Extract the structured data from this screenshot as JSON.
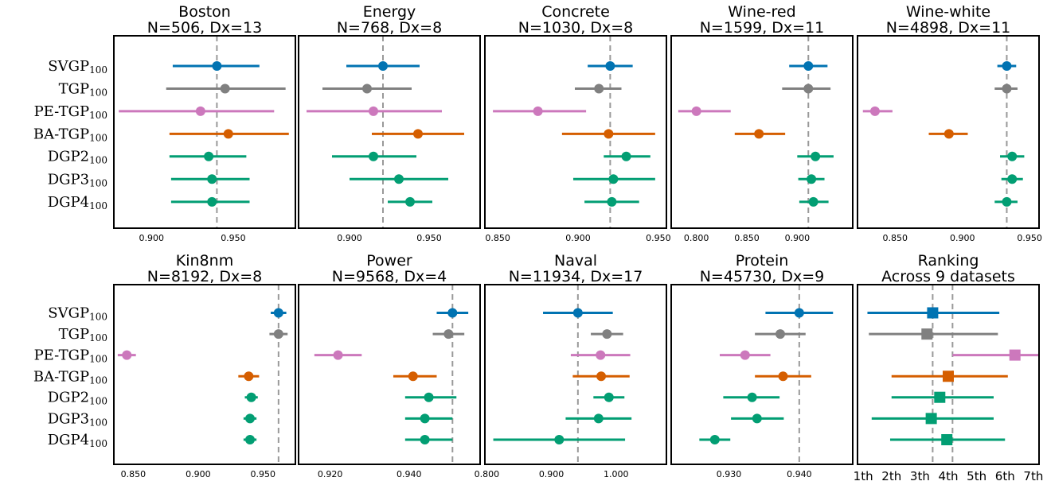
{
  "figure": {
    "methods": [
      {
        "name": "SVGP",
        "sub": "100",
        "color": "#0173b2"
      },
      {
        "name": "TGP",
        "sub": "100",
        "color": "#808080"
      },
      {
        "name": "PE-TGP",
        "sub": "100",
        "color": "#cc78bc"
      },
      {
        "name": "BA-TGP",
        "sub": "100",
        "color": "#d55e00"
      },
      {
        "name": "DGP2",
        "sub": "100",
        "color": "#029e73"
      },
      {
        "name": "DGP3",
        "sub": "100",
        "color": "#029e73"
      },
      {
        "name": "DGP4",
        "sub": "100",
        "color": "#029e73"
      }
    ]
  },
  "chart_data": [
    {
      "type": "errorbar",
      "title": "Boston",
      "subtitle": "N=506, Dx=13",
      "xlim": [
        0.877,
        0.988
      ],
      "xticks": [
        0.9,
        0.95
      ],
      "xticklabels": [
        "0.900",
        "0.950"
      ],
      "reference": 0.94,
      "marker": "circle",
      "mean": [
        0.94,
        0.945,
        0.93,
        0.947,
        0.935,
        0.937,
        0.937
      ],
      "low": [
        0.913,
        0.909,
        0.88,
        0.911,
        0.911,
        0.912,
        0.912
      ],
      "high": [
        0.966,
        0.982,
        0.975,
        0.984,
        0.958,
        0.96,
        0.96
      ]
    },
    {
      "type": "errorbar",
      "title": "Energy",
      "subtitle": "N=768, Dx=8",
      "xlim": [
        0.868,
        0.982
      ],
      "xticks": [
        0.9,
        0.95
      ],
      "xticklabels": [
        "0.900",
        "0.950"
      ],
      "reference": 0.921,
      "marker": "circle",
      "mean": [
        0.921,
        0.911,
        0.915,
        0.943,
        0.915,
        0.931,
        0.938
      ],
      "low": [
        0.898,
        0.883,
        0.873,
        0.914,
        0.889,
        0.9,
        0.924
      ],
      "high": [
        0.944,
        0.939,
        0.958,
        0.972,
        0.942,
        0.962,
        0.952
      ]
    },
    {
      "type": "errorbar",
      "title": "Concrete",
      "subtitle": "N=1030, Dx=8",
      "xlim": [
        0.842,
        0.955
      ],
      "xticks": [
        0.85,
        0.9,
        0.95
      ],
      "xticklabels": [
        "0.850",
        "0.900",
        "0.950"
      ],
      "reference": 0.92,
      "marker": "circle",
      "mean": [
        0.92,
        0.913,
        0.875,
        0.919,
        0.93,
        0.922,
        0.921
      ],
      "low": [
        0.906,
        0.898,
        0.847,
        0.89,
        0.916,
        0.897,
        0.904
      ],
      "high": [
        0.934,
        0.927,
        0.905,
        0.948,
        0.945,
        0.948,
        0.938
      ]
    },
    {
      "type": "errorbar",
      "title": "Wine-red",
      "subtitle": "N=1599, Dx=11",
      "xlim": [
        0.775,
        0.955
      ],
      "xticks": [
        0.8,
        0.85,
        0.9
      ],
      "xticklabels": [
        "0.800",
        "0.850",
        "0.900"
      ],
      "reference": 0.911,
      "marker": "circle",
      "mean": [
        0.911,
        0.911,
        0.8,
        0.862,
        0.918,
        0.914,
        0.916
      ],
      "low": [
        0.892,
        0.885,
        0.782,
        0.838,
        0.9,
        0.901,
        0.902
      ],
      "high": [
        0.93,
        0.933,
        0.834,
        0.888,
        0.936,
        0.927,
        0.931
      ]
    },
    {
      "type": "errorbar",
      "title": "Wine-white",
      "subtitle": "N=4898, Dx=11",
      "xlim": [
        0.822,
        0.957
      ],
      "xticks": [
        0.85,
        0.9,
        0.95
      ],
      "xticklabels": [
        "0.850",
        "0.900",
        "0.950"
      ],
      "reference": 0.933,
      "marker": "circle",
      "mean": [
        0.933,
        0.933,
        0.835,
        0.89,
        0.937,
        0.937,
        0.933
      ],
      "low": [
        0.926,
        0.924,
        0.826,
        0.875,
        0.928,
        0.929,
        0.924
      ],
      "high": [
        0.94,
        0.941,
        0.848,
        0.904,
        0.946,
        0.945,
        0.941
      ]
    },
    {
      "type": "errorbar",
      "title": "Kin8nm",
      "subtitle": "N=8192, Dx=8",
      "xlim": [
        0.835,
        0.975
      ],
      "xticks": [
        0.85,
        0.9,
        0.95
      ],
      "xticklabels": [
        "0.850",
        "0.900",
        "0.950"
      ],
      "reference": 0.962,
      "marker": "circle",
      "mean": [
        0.962,
        0.962,
        0.845,
        0.939,
        0.941,
        0.94,
        0.94
      ],
      "low": [
        0.956,
        0.955,
        0.838,
        0.931,
        0.936,
        0.935,
        0.935
      ],
      "high": [
        0.968,
        0.969,
        0.852,
        0.947,
        0.946,
        0.945,
        0.945
      ]
    },
    {
      "type": "errorbar",
      "title": "Power",
      "subtitle": "N=9568, Dx=4",
      "xlim": [
        0.912,
        0.958
      ],
      "xticks": [
        0.92,
        0.94
      ],
      "xticklabels": [
        "0.920",
        "0.940"
      ],
      "reference": 0.951,
      "marker": "circle",
      "mean": [
        0.951,
        0.95,
        0.922,
        0.941,
        0.945,
        0.944,
        0.944
      ],
      "low": [
        0.947,
        0.946,
        0.916,
        0.936,
        0.939,
        0.939,
        0.939
      ],
      "high": [
        0.955,
        0.954,
        0.928,
        0.947,
        0.952,
        0.951,
        0.951
      ]
    },
    {
      "type": "errorbar",
      "title": "Naval",
      "subtitle": "N=11934, Dx=17",
      "xlim": [
        0.797,
        1.078
      ],
      "xticks": [
        0.8,
        0.9,
        1.0
      ],
      "xticklabels": [
        "0.800",
        "0.900",
        "1.000"
      ],
      "reference": 0.941,
      "marker": "circle",
      "mean": [
        0.941,
        0.986,
        0.976,
        0.977,
        0.989,
        0.973,
        0.912
      ],
      "low": [
        0.887,
        0.961,
        0.93,
        0.933,
        0.965,
        0.922,
        0.81
      ],
      "high": [
        0.995,
        1.011,
        1.022,
        1.021,
        1.013,
        1.024,
        1.014
      ]
    },
    {
      "type": "errorbar",
      "title": "Protein",
      "subtitle": "N=45730, Dx=9",
      "xlim": [
        0.9218,
        0.9476
      ],
      "xticks": [
        0.93,
        0.94
      ],
      "xticklabels": [
        "0.930",
        "0.940"
      ],
      "reference": 0.94,
      "marker": "circle",
      "mean": [
        0.94,
        0.9373,
        0.9323,
        0.9377,
        0.9333,
        0.934,
        0.928
      ],
      "low": [
        0.9352,
        0.9337,
        0.9287,
        0.9337,
        0.9292,
        0.9303,
        0.9258
      ],
      "high": [
        0.9448,
        0.9409,
        0.9359,
        0.9417,
        0.9372,
        0.9378,
        0.9302
      ]
    },
    {
      "type": "errorbar",
      "title": "Ranking",
      "subtitle": "Across 9 datasets",
      "xlim": [
        0.8,
        7.2
      ],
      "xticks": [
        1,
        2,
        3,
        4,
        5,
        6,
        7
      ],
      "xticklabels": [
        "1th",
        "2th",
        "3th",
        "4th",
        "5th",
        "6th",
        "7th"
      ],
      "reference": [
        3.45,
        4.15
      ],
      "marker": "square",
      "mean": [
        3.45,
        3.25,
        6.35,
        4.0,
        3.7,
        3.4,
        3.95
      ],
      "low": [
        1.15,
        1.2,
        4.15,
        2.0,
        2.0,
        1.3,
        1.95
      ],
      "high": [
        5.8,
        5.75,
        7.2,
        6.1,
        5.6,
        5.6,
        6.0
      ]
    }
  ]
}
